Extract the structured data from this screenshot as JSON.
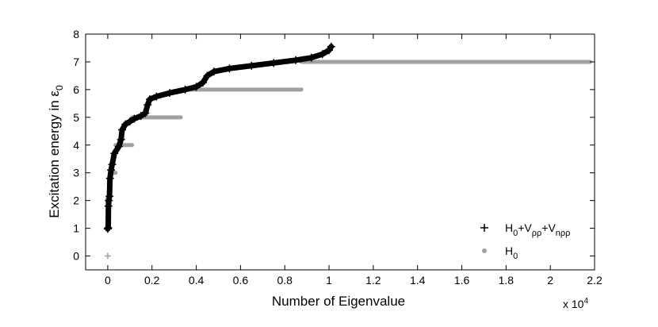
{
  "chart_data": {
    "type": "scatter",
    "title": "",
    "xlabel": "Number of Eigenvalue",
    "ylabel": {
      "text": "Excitation energy in ",
      "symbol": "ε",
      "subscript": "0"
    },
    "x_multiplier_label": {
      "text": "x 10",
      "exponent": "4"
    },
    "xlim": [
      -0.1,
      2.2
    ],
    "ylim": [
      -0.5,
      8
    ],
    "x_ticks": [
      0,
      0.2,
      0.4,
      0.6,
      0.8,
      1,
      1.2,
      1.4,
      1.6,
      1.8,
      2,
      2.2
    ],
    "x_tick_labels": [
      "0",
      "0.2",
      "0.4",
      "0.6",
      "0.8",
      "1",
      "1.2",
      "1.4",
      "1.6",
      "1.8",
      "2",
      "2.2"
    ],
    "y_ticks": [
      0,
      1,
      2,
      3,
      4,
      5,
      6,
      7,
      8
    ],
    "y_tick_labels": [
      "0",
      "1",
      "2",
      "3",
      "4",
      "5",
      "6",
      "7",
      "8"
    ],
    "grid": false,
    "legend_position": "lower-right",
    "series": [
      {
        "name": "H0+Vρρ+Vnρρ",
        "legend": {
          "parts": [
            {
              "t": "H"
            },
            {
              "t": "0",
              "sub": true
            },
            {
              "t": "+V"
            },
            {
              "t": "ρρ",
              "sub": true
            },
            {
              "t": "+V"
            },
            {
              "t": "nρρ",
              "sub": true
            }
          ]
        },
        "marker": "plus",
        "color": "#000000",
        "curve": [
          [
            0,
            0.98
          ],
          [
            0.002,
            1.02
          ],
          [
            0.003,
            1.8
          ],
          [
            0.005,
            2.0
          ],
          [
            0.008,
            2.15
          ],
          [
            0.01,
            2.8
          ],
          [
            0.015,
            3.1
          ],
          [
            0.02,
            3.3
          ],
          [
            0.03,
            3.7
          ],
          [
            0.05,
            3.95
          ],
          [
            0.06,
            4.2
          ],
          [
            0.065,
            4.55
          ],
          [
            0.08,
            4.75
          ],
          [
            0.1,
            4.85
          ],
          [
            0.12,
            4.95
          ],
          [
            0.15,
            5.05
          ],
          [
            0.17,
            5.15
          ],
          [
            0.18,
            5.45
          ],
          [
            0.19,
            5.65
          ],
          [
            0.22,
            5.75
          ],
          [
            0.28,
            5.88
          ],
          [
            0.35,
            6.0
          ],
          [
            0.4,
            6.1
          ],
          [
            0.43,
            6.25
          ],
          [
            0.45,
            6.5
          ],
          [
            0.48,
            6.65
          ],
          [
            0.55,
            6.76
          ],
          [
            0.65,
            6.86
          ],
          [
            0.75,
            6.96
          ],
          [
            0.85,
            7.06
          ],
          [
            0.92,
            7.15
          ],
          [
            0.97,
            7.28
          ],
          [
            1.0,
            7.42
          ],
          [
            1.01,
            7.55
          ]
        ]
      },
      {
        "name": "H0",
        "legend": {
          "parts": [
            {
              "t": "H"
            },
            {
              "t": "0",
              "sub": true
            }
          ]
        },
        "marker": "dot",
        "color": "#a0a0a0",
        "levels": [
          {
            "y": 0,
            "x0": 0.0,
            "x1": 0.0
          },
          {
            "y": 1,
            "x0": 0.0,
            "x1": 0.003
          },
          {
            "y": 2,
            "x0": 0.0,
            "x1": 0.01
          },
          {
            "y": 3,
            "x0": 0.01,
            "x1": 0.035
          },
          {
            "y": 4,
            "x0": 0.035,
            "x1": 0.11
          },
          {
            "y": 5,
            "x0": 0.11,
            "x1": 0.33
          },
          {
            "y": 6,
            "x0": 0.33,
            "x1": 0.875
          },
          {
            "y": 7,
            "x0": 0.875,
            "x1": 2.18
          }
        ]
      }
    ]
  }
}
